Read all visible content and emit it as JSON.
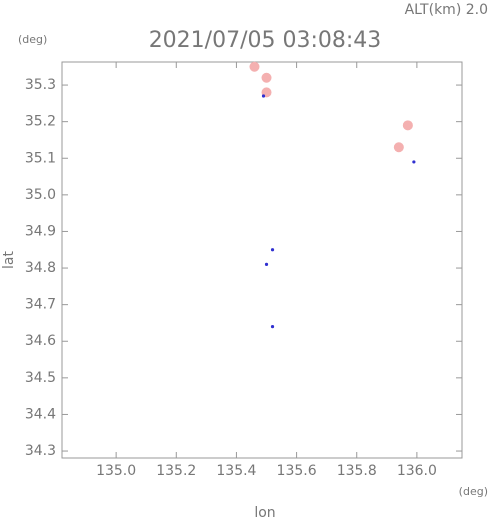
{
  "chart_data": {
    "type": "scatter",
    "title": "2021/07/05 03:08:43",
    "subtitle": "ALT(km) 2.0",
    "x_label": "lon",
    "y_label": "lat",
    "x_unit": "(deg)",
    "y_unit": "(deg)",
    "xlim": [
      134.82,
      136.15
    ],
    "ylim": [
      34.281,
      35.363
    ],
    "xticks": [
      {
        "value": 135.0,
        "label": "135.0"
      },
      135.2,
      135.4,
      135.6,
      135.8,
      {
        "value": 136.0,
        "label": "136.0"
      }
    ],
    "yticks": [
      34.3,
      34.4,
      34.5,
      34.6,
      34.7,
      34.8,
      34.9,
      {
        "value": 35.0,
        "label": "35.0"
      },
      35.1,
      35.2,
      35.3
    ],
    "series": [
      {
        "color": "#f4b0b0",
        "x": [
          135.5,
          135.46,
          135.5,
          135.97,
          135.94
        ],
        "values": [
          35.28,
          35.35,
          35.32,
          35.19,
          35.13
        ]
      },
      {
        "color": "#3030d0",
        "x": [
          135.49,
          135.99,
          135.52,
          135.5,
          135.52
        ],
        "values": [
          35.27,
          35.09,
          34.85,
          34.81,
          34.64
        ]
      }
    ]
  }
}
